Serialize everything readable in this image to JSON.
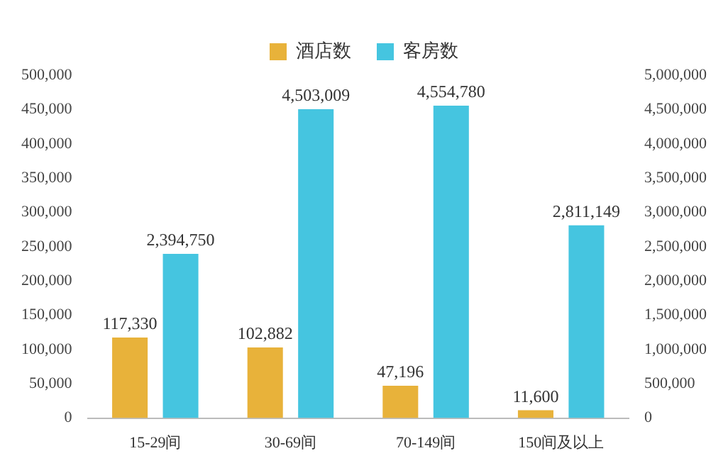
{
  "chart_data": {
    "type": "bar",
    "categories": [
      "15-29间",
      "30-69间",
      "70-149间",
      "150间及以上"
    ],
    "series": [
      {
        "name": "酒店数",
        "color": "#e8b23a",
        "values": [
          117330,
          102882,
          47196,
          11600
        ],
        "value_labels": [
          "117,330",
          "102,882",
          "47,196",
          "11,600"
        ]
      },
      {
        "name": "客房数",
        "color": "#45c5e0",
        "values": [
          2394750,
          4503009,
          4554780,
          2811149
        ],
        "value_labels": [
          "2,394,750",
          "4,503,009",
          "4,554,780",
          "2,811,149"
        ],
        "axis": "y2"
      }
    ],
    "ylim": [
      0,
      500000
    ],
    "yticks": [
      0,
      {
        "value": 50000,
        "label": "50,000"
      },
      {
        "value": 100000,
        "label": "100,000"
      },
      {
        "value": 150000,
        "label": "150,000"
      },
      {
        "value": 200000,
        "label": "200,000"
      },
      {
        "value": 250000,
        "label": "250,000"
      },
      {
        "value": 300000,
        "label": "300,000"
      },
      {
        "value": 350000,
        "label": "350,000"
      },
      {
        "value": 400000,
        "label": "400,000"
      },
      {
        "value": 450000,
        "label": "450,000"
      },
      {
        "value": 500000,
        "label": "500,000"
      }
    ],
    "y2lim": [
      0,
      5000000
    ],
    "y2ticks": [
      0,
      {
        "value": 500000,
        "label": "500,000"
      },
      {
        "value": 1000000,
        "label": "1,000,000"
      },
      {
        "value": 1500000,
        "label": "1,500,000"
      },
      {
        "value": 2000000,
        "label": "2,000,000"
      },
      {
        "value": 2500000,
        "label": "2,500,000"
      },
      {
        "value": 3000000,
        "label": "3,000,000"
      },
      {
        "value": 3500000,
        "label": "3,500,000"
      },
      {
        "value": 4000000,
        "label": "4,000,000"
      },
      {
        "value": 4500000,
        "label": "4,500,000"
      },
      {
        "value": 5000000,
        "label": "5,000,000"
      }
    ],
    "legend": "top",
    "grid": false
  }
}
